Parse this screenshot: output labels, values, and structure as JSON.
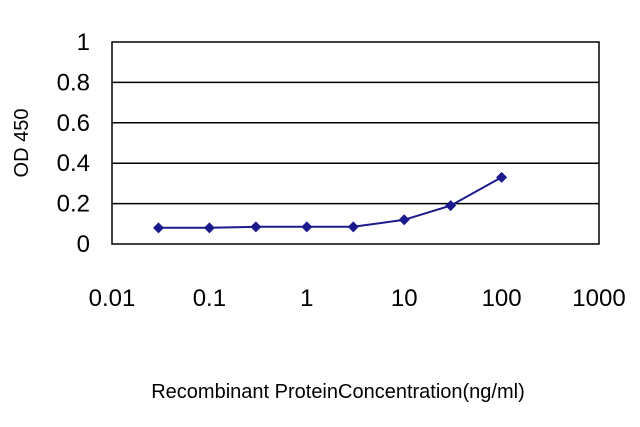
{
  "chart_data": {
    "type": "line",
    "title": "",
    "xlabel": "Recombinant ProteinConcentration(ng/ml)",
    "ylabel": "OD 450",
    "x_scale": "log",
    "xlim": [
      0.01,
      1000
    ],
    "ylim": [
      0,
      1
    ],
    "x_ticks": [
      "0.01",
      "0.1",
      "1",
      "10",
      "100",
      "1000"
    ],
    "y_ticks": [
      "0",
      "0.2",
      "0.4",
      "0.6",
      "0.8",
      "1"
    ],
    "grid": "horizontal",
    "legend": "none",
    "series": [
      {
        "color": "#1a1a8c",
        "marker": "diamond",
        "x": [
          0.03,
          0.1,
          0.3,
          1,
          3,
          10,
          30,
          100
        ],
        "y": [
          0.08,
          0.08,
          0.085,
          0.085,
          0.085,
          0.12,
          0.19,
          0.33
        ]
      }
    ]
  }
}
